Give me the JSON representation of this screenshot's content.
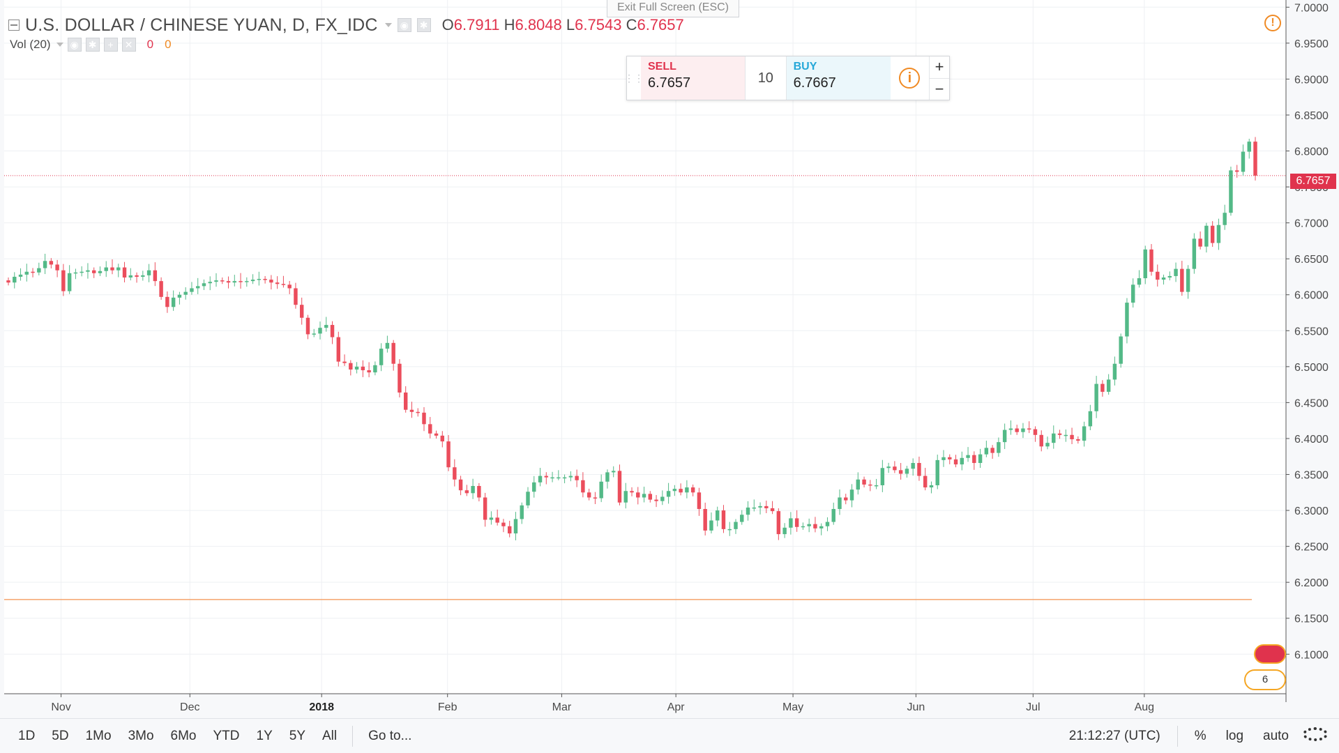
{
  "header": {
    "exit_fullscreen": "Exit Full Screen (ESC)",
    "symbol_title": "U.S. DOLLAR / CHINESE YUAN, D, FX_IDC",
    "ohlc": {
      "o_label": "O",
      "o": "6.7911",
      "h_label": "H",
      "h": "6.8048",
      "l_label": "L",
      "l": "6.7543",
      "c_label": "C",
      "c": "6.7657"
    },
    "volume_label": "Vol (20)",
    "volume_values": [
      "0",
      "0"
    ]
  },
  "trade_panel": {
    "sell_label": "SELL",
    "sell_price": "6.7657",
    "quantity": "10",
    "buy_label": "BUY",
    "buy_price": "6.7667",
    "info_icon": "info-icon",
    "plus": "+",
    "minus": "−"
  },
  "last_price_tag": "6.7657",
  "alert_icon": "!",
  "flag_badge": "6",
  "bottom_bar": {
    "ranges": [
      "1D",
      "5D",
      "1Mo",
      "3Mo",
      "6Mo",
      "YTD",
      "1Y",
      "5Y",
      "All"
    ],
    "goto": "Go to...",
    "time": "21:12:27 (UTC)",
    "percent": "%",
    "log": "log",
    "auto": "auto"
  },
  "colors": {
    "up": "#53b987",
    "down": "#eb4d5c",
    "last_line": "#e0334d",
    "horizontal_line": "#f5a36b"
  },
  "chart_data": {
    "type": "candlestick",
    "y_ticks": [
      "7.0000",
      "6.9500",
      "6.9000",
      "6.8500",
      "6.8000",
      "6.7500",
      "6.7000",
      "6.6500",
      "6.6000",
      "6.5500",
      "6.5000",
      "6.4500",
      "6.4000",
      "6.3500",
      "6.3000",
      "6.2500",
      "6.2000",
      "6.1500",
      "6.1000"
    ],
    "ylim": [
      6.045,
      7.01
    ],
    "x_ticks": [
      {
        "label": "Nov",
        "bold": false
      },
      {
        "label": "Dec",
        "bold": false
      },
      {
        "label": "2018",
        "bold": true
      },
      {
        "label": "Feb",
        "bold": false
      },
      {
        "label": "Mar",
        "bold": false
      },
      {
        "label": "Apr",
        "bold": false
      },
      {
        "label": "May",
        "bold": false
      },
      {
        "label": "Jun",
        "bold": false
      },
      {
        "label": "Jul",
        "bold": false
      },
      {
        "label": "Aug",
        "bold": false
      }
    ],
    "last_price": 6.7657,
    "horizontal_level": 6.176,
    "closes": [
      6.617,
      6.625,
      6.628,
      6.632,
      6.631,
      6.637,
      6.647,
      6.642,
      6.634,
      6.605,
      6.63,
      6.631,
      6.632,
      6.634,
      6.63,
      6.633,
      6.638,
      6.634,
      6.638,
      6.624,
      6.627,
      6.625,
      6.627,
      6.634,
      6.619,
      6.597,
      6.583,
      6.596,
      6.6,
      6.604,
      6.609,
      6.612,
      6.616,
      6.618,
      6.62,
      6.619,
      6.617,
      6.619,
      6.618,
      6.619,
      6.621,
      6.622,
      6.621,
      6.617,
      6.615,
      6.614,
      6.609,
      6.586,
      6.568,
      6.545,
      6.546,
      6.554,
      6.558,
      6.541,
      6.507,
      6.505,
      6.496,
      6.5,
      6.495,
      6.492,
      6.502,
      6.525,
      6.533,
      6.504,
      6.464,
      6.44,
      6.437,
      6.436,
      6.42,
      6.407,
      6.404,
      6.396,
      6.36,
      6.343,
      6.328,
      6.324,
      6.334,
      6.318,
      6.287,
      6.29,
      6.283,
      6.278,
      6.268,
      6.288,
      6.307,
      6.326,
      6.339,
      6.348,
      6.346,
      6.346,
      6.346,
      6.346,
      6.348,
      6.342,
      6.325,
      6.318,
      6.317,
      6.34,
      6.353,
      6.355,
      6.311,
      6.327,
      6.325,
      6.318,
      6.323,
      6.315,
      6.313,
      6.319,
      6.327,
      6.33,
      6.325,
      6.332,
      6.325,
      6.302,
      6.272,
      6.286,
      6.3,
      6.274,
      6.274,
      6.284,
      6.294,
      6.304,
      6.304,
      6.306,
      6.303,
      6.299,
      6.267,
      6.276,
      6.289,
      6.277,
      6.278,
      6.281,
      6.275,
      6.278,
      6.284,
      6.302,
      6.318,
      6.314,
      6.329,
      6.343,
      6.336,
      6.335,
      6.335,
      6.359,
      6.361,
      6.356,
      6.351,
      6.358,
      6.366,
      6.348,
      6.332,
      6.335,
      6.37,
      6.374,
      6.371,
      6.364,
      6.373,
      6.377,
      6.366,
      6.378,
      6.387,
      6.38,
      6.395,
      6.412,
      6.414,
      6.409,
      6.414,
      6.413,
      6.405,
      6.389,
      6.394,
      6.407,
      6.405,
      6.405,
      6.399,
      6.397,
      6.417,
      6.438,
      6.476,
      6.465,
      6.482,
      6.504,
      6.542,
      6.589,
      6.614,
      6.623,
      6.663,
      6.632,
      6.621,
      6.624,
      6.626,
      6.636,
      6.604,
      6.636,
      6.678,
      6.667,
      6.696,
      6.672,
      6.697,
      6.714,
      6.773,
      6.771,
      6.799,
      6.813,
      6.7657
    ]
  }
}
